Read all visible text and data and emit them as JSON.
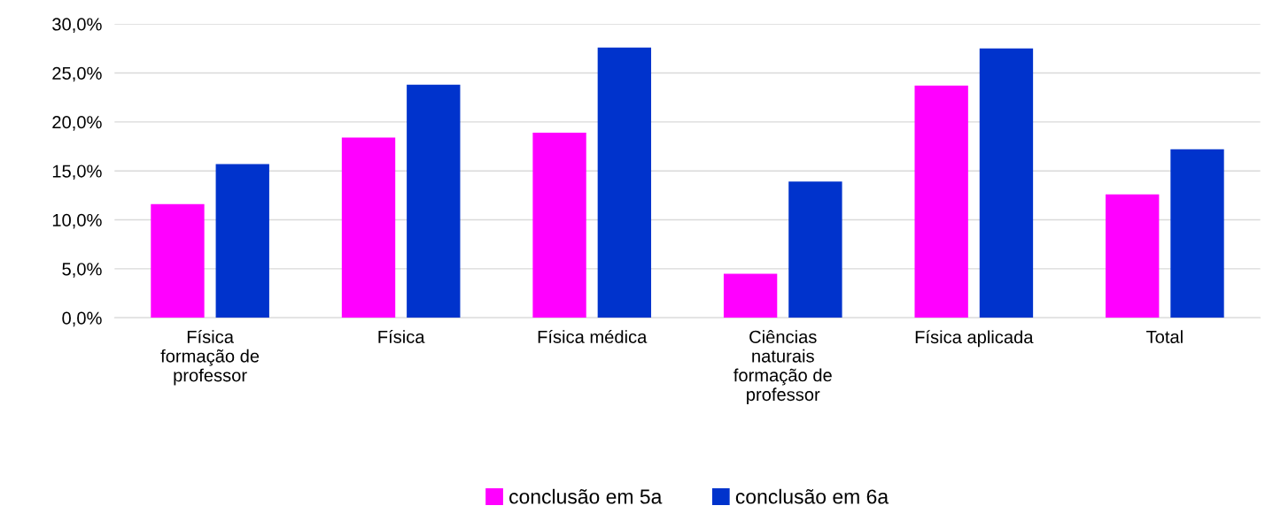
{
  "chart_data": {
    "type": "bar",
    "categories": [
      "Física\nformação de\nprofessor",
      "Física",
      "Física médica",
      "Ciências\nnaturais\nformação de\nprofessor",
      "Física aplicada",
      "Total"
    ],
    "series": [
      {
        "name": "conclusão em 5a",
        "color": "#ff00ff",
        "values": [
          11.6,
          18.4,
          18.9,
          4.5,
          23.7,
          12.6
        ]
      },
      {
        "name": "conclusão em 6a",
        "color": "#0033cc",
        "values": [
          15.7,
          23.8,
          27.6,
          13.9,
          27.5,
          17.2
        ]
      }
    ],
    "ylim": [
      0,
      30
    ],
    "yticks": [
      {
        "value": 0,
        "label": "0,0%"
      },
      {
        "value": 5,
        "label": "5,0%"
      },
      {
        "value": 10,
        "label": "10,0%"
      },
      {
        "value": 15,
        "label": "15,0%"
      },
      {
        "value": 20,
        "label": "20,0%"
      },
      {
        "value": 25,
        "label": "25,0%"
      },
      {
        "value": 30,
        "label": "30,0%"
      }
    ],
    "grid": "y",
    "legend": "bottom"
  }
}
